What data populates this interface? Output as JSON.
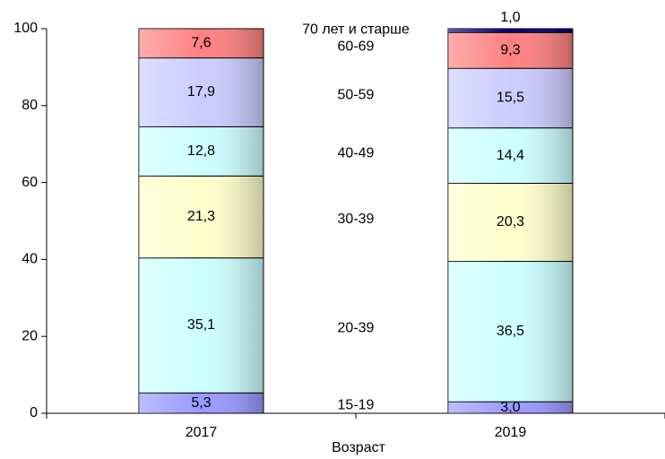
{
  "chart_data": {
    "type": "stacked_bar",
    "x_label": "Возраст",
    "categories": [
      "2017",
      "2019"
    ],
    "series": [
      {
        "name": "15-19",
        "color": "#9999ff",
        "values": [
          5.3,
          3.0
        ],
        "value_labels": [
          "5,3",
          "3,0"
        ]
      },
      {
        "name": "20-39",
        "color": "#ccffff",
        "values": [
          35.1,
          36.5
        ],
        "value_labels": [
          "35,1",
          "36,5"
        ]
      },
      {
        "name": "30-39",
        "color": "#ffffcc",
        "values": [
          21.3,
          20.3
        ],
        "value_labels": [
          "21,3",
          "20,3"
        ]
      },
      {
        "name": "40-49",
        "color": "#ccffff",
        "values": [
          12.8,
          14.4
        ],
        "value_labels": [
          "12,8",
          "14,4"
        ]
      },
      {
        "name": "50-59",
        "color": "#ccccff",
        "values": [
          17.9,
          15.5
        ],
        "value_labels": [
          "17,9",
          "15,5"
        ]
      },
      {
        "name": "60-69",
        "color": "#ff8080",
        "values": [
          7.6,
          9.3
        ],
        "value_labels": [
          "7,6",
          "9,3"
        ]
      },
      {
        "name": "70 лет и старше",
        "color": "#000080",
        "values": [
          0,
          1.0
        ],
        "value_labels": [
          null,
          "1,0"
        ]
      }
    ],
    "ylim": [
      0,
      100
    ],
    "yticks": [
      0,
      20,
      40,
      60,
      80,
      100
    ]
  }
}
